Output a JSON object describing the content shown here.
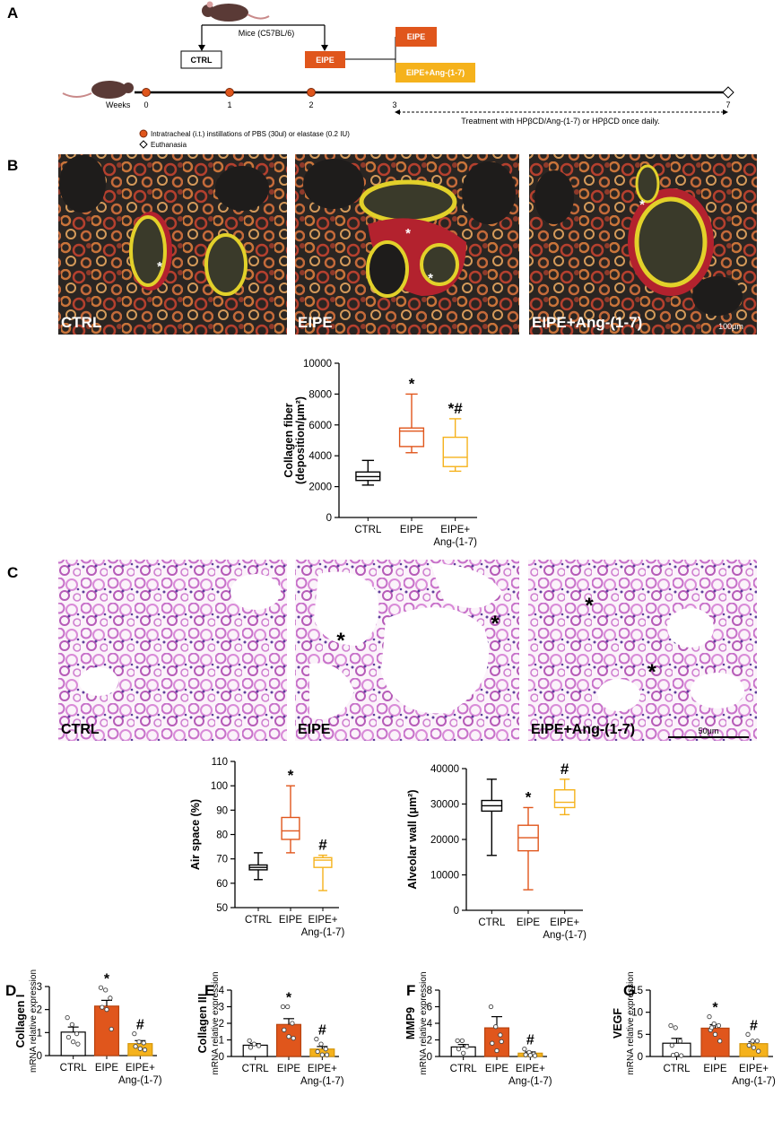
{
  "panel_labels": [
    "A",
    "B",
    "C",
    "D",
    "E",
    "F",
    "G"
  ],
  "timeline": {
    "strain": "Mice (C57BL/6)",
    "groups": [
      "CTRL",
      "EIPE"
    ],
    "treatment_groups": [
      "EIPE",
      "EIPE+Ang-(1-7)"
    ],
    "axis_label": "Weeks",
    "weeks": [
      "0",
      "1",
      "2",
      "3",
      "7"
    ],
    "treatment": "Treatment with HPβCD/Ang-(1-7) or HPβCD once daily.",
    "legend": [
      "Intratracheal (i.t.) instillations of PBS (30ul) or elastase (0.2 IU)",
      "Euthanasia"
    ]
  },
  "micrographs": [
    {
      "images": [
        {
          "label": "CTRL",
          "markers": [
            "*"
          ]
        },
        {
          "label": "EIPE",
          "markers": [
            "*",
            "*"
          ]
        },
        {
          "label": "EIPE+Ang-(1-7)",
          "markers": [
            "*"
          ]
        }
      ],
      "scale_bar": "100μm"
    },
    {
      "images": [
        {
          "label": "CTRL"
        },
        {
          "label": "EIPE",
          "markers": [
            "*",
            "*"
          ]
        },
        {
          "label": "EIPE+Ang-(1-7)",
          "markers": [
            "*",
            "*"
          ]
        }
      ],
      "scale_bar": "50μm"
    }
  ],
  "chart_data": [
    {
      "type": "box",
      "ylabel": [
        "Collagen fiber",
        "(deposition/μm²)"
      ],
      "categories": [
        "CTRL",
        "EIPE",
        "EIPE+\nAng-(1-7)"
      ],
      "boxes": [
        {
          "min": 2100,
          "q1": 2400,
          "median": 2650,
          "q3": 2950,
          "max": 3700
        },
        {
          "min": 4200,
          "q1": 4600,
          "median": 5600,
          "q3": 5800,
          "max": 8000
        },
        {
          "min": 3000,
          "q1": 3300,
          "median": 3900,
          "q3": 5200,
          "max": 6400
        }
      ],
      "colors": [
        "#000000",
        "#e0561c",
        "#f5b21c"
      ],
      "annotations": [
        null,
        "*",
        "*#"
      ],
      "ylim": [
        0,
        10000
      ],
      "yticks": [
        0,
        2000,
        4000,
        6000,
        8000,
        10000
      ]
    },
    {
      "type": "box",
      "ylabel": [
        "Air space (%)"
      ],
      "categories": [
        "CTRL",
        "EIPE",
        "EIPE+\nAng-(1-7)"
      ],
      "boxes": [
        {
          "min": 61.5,
          "q1": 65.5,
          "median": 66.5,
          "q3": 67.5,
          "max": 72.5
        },
        {
          "min": 72.5,
          "q1": 78,
          "median": 81.5,
          "q3": 87,
          "max": 100
        },
        {
          "min": 57,
          "q1": 66.5,
          "median": 69.5,
          "q3": 70.5,
          "max": 71.5
        }
      ],
      "colors": [
        "#000000",
        "#e0561c",
        "#f5b21c"
      ],
      "annotations": [
        null,
        "*",
        "#"
      ],
      "ylim": [
        50,
        110
      ],
      "yticks": [
        50,
        60,
        70,
        80,
        90,
        100,
        110
      ]
    },
    {
      "type": "box",
      "ylabel": [
        "Alveolar wall (μm²)"
      ],
      "categories": [
        "CTRL",
        "EIPE",
        "EIPE+\nAng-(1-7)"
      ],
      "boxes": [
        {
          "min": 15500,
          "q1": 28000,
          "median": 29500,
          "q3": 31000,
          "max": 37000
        },
        {
          "min": 5800,
          "q1": 16800,
          "median": 20500,
          "q3": 24000,
          "max": 29000
        },
        {
          "min": 27000,
          "q1": 29000,
          "median": 30500,
          "q3": 34000,
          "max": 37000
        }
      ],
      "colors": [
        "#000000",
        "#e0561c",
        "#f5b21c"
      ],
      "annotations": [
        null,
        "*",
        "#"
      ],
      "ylim": [
        0,
        40000
      ],
      "yticks": [
        0,
        10000,
        20000,
        30000,
        40000
      ]
    },
    {
      "type": "bar",
      "ylabel": [
        "Collagen I",
        "mRNA relative expression"
      ],
      "categories": [
        "CTRL",
        "EIPE",
        "EIPE+\nAng-(1-7)"
      ],
      "values": [
        1.02,
        2.15,
        0.52
      ],
      "errors": [
        0.22,
        0.25,
        0.13
      ],
      "points": [
        [
          1.65,
          1.35,
          0.95,
          0.8,
          0.6,
          0.5
        ],
        [
          2.95,
          2.85,
          2.5,
          2.1,
          2.0,
          1.15
        ],
        [
          0.95,
          0.6,
          0.55,
          0.4,
          0.3,
          0.25
        ]
      ],
      "colors": [
        "#ffffff",
        "#e0561c",
        "#f5b21c"
      ],
      "edge_colors": [
        "#000000",
        "#b8440f",
        "#d4960c"
      ],
      "annotations": [
        null,
        "*",
        "#"
      ],
      "ylim": [
        0,
        3
      ],
      "yticks": [
        0,
        1,
        2,
        3
      ]
    },
    {
      "type": "bar",
      "ylabel": [
        "Collagen III",
        "mRNA relative expression"
      ],
      "categories": [
        "CTRL",
        "EIPE",
        "EIPE+\nAng-(1-7)"
      ],
      "values": [
        0.68,
        1.93,
        0.45
      ],
      "errors": [
        0.1,
        0.35,
        0.15
      ],
      "points": [
        [
          0.95,
          0.75,
          0.65,
          0.55
        ],
        [
          3.0,
          3.0,
          2.0,
          1.6,
          1.2,
          1.1
        ],
        [
          1.05,
          0.75,
          0.45,
          0.3,
          0.1,
          0.1
        ]
      ],
      "colors": [
        "#ffffff",
        "#e0561c",
        "#f5b21c"
      ],
      "edge_colors": [
        "#000000",
        "#b8440f",
        "#d4960c"
      ],
      "annotations": [
        null,
        "*",
        "#"
      ],
      "ylim": [
        0,
        4
      ],
      "yticks": [
        0,
        1,
        2,
        3,
        4
      ]
    },
    {
      "type": "bar",
      "ylabel": [
        "MMP9",
        "mRNA relative expression"
      ],
      "categories": [
        "CTRL",
        "EIPE",
        "EIPE+\nAng-(1-7)"
      ],
      "values": [
        1.15,
        3.45,
        0.4
      ],
      "errors": [
        0.3,
        1.35,
        0.15
      ],
      "points": [
        [
          1.9,
          1.9,
          1.2,
          0.9,
          0.4
        ],
        [
          6.0,
          3.6,
          2.6,
          1.6,
          0.7,
          1.8
        ],
        [
          0.9,
          0.5,
          0.3,
          0.2,
          0.15,
          0.1
        ]
      ],
      "colors": [
        "#ffffff",
        "#e0561c",
        "#f5b21c"
      ],
      "edge_colors": [
        "#000000",
        "#b8440f",
        "#d4960c"
      ],
      "annotations": [
        null,
        null,
        "#"
      ],
      "ylim": [
        0,
        8
      ],
      "yticks": [
        0,
        2,
        4,
        6,
        8
      ]
    },
    {
      "type": "bar",
      "ylabel": [
        "VEGF",
        "mRNA relative expression"
      ],
      "categories": [
        "CTRL",
        "EIPE",
        "EIPE+\nAng-(1-7)"
      ],
      "values": [
        3.0,
        6.4,
        2.9
      ],
      "errors": [
        1.1,
        0.8,
        0.4
      ],
      "points": [
        [
          7.0,
          6.5,
          3.5,
          2.5,
          0.5,
          0.2,
          0.3
        ],
        [
          9.0,
          7.4,
          7.0,
          6.0,
          5.0,
          3.5,
          6.5
        ],
        [
          5.0,
          3.5,
          3.5,
          2.5,
          2.0,
          1.2
        ]
      ],
      "colors": [
        "#ffffff",
        "#e0561c",
        "#f5b21c"
      ],
      "edge_colors": [
        "#000000",
        "#b8440f",
        "#d4960c"
      ],
      "annotations": [
        null,
        "*",
        "#"
      ],
      "ylim": [
        0,
        15
      ],
      "yticks": [
        0,
        5,
        10,
        15
      ]
    }
  ]
}
